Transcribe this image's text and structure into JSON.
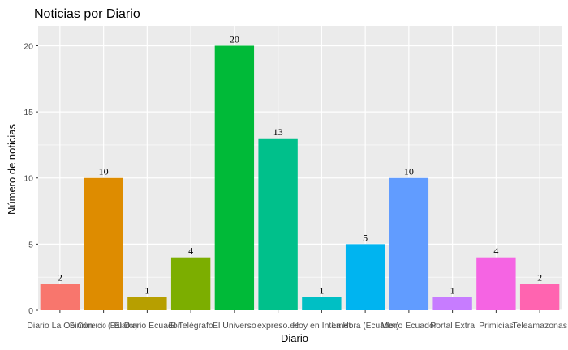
{
  "chart_data": {
    "type": "bar",
    "title": "Noticias por Diario",
    "xlabel": "Diario",
    "ylabel": "Número de noticias",
    "ylim": [
      0,
      21.5
    ],
    "yticks": [
      0,
      5,
      10,
      15,
      20
    ],
    "grid": true,
    "legend": "none",
    "categories": [
      "Diario La Opinión",
      "El Comercio (Ecuador)",
      "El Diario Ecuador",
      "El Telégrafo",
      "El Universo",
      "expreso.ec",
      "Hoy en Internet",
      "La Hora (Ecuador)",
      "Metro Ecuador",
      "Portal Extra",
      "Primicias",
      "Teleamazonas"
    ],
    "values": [
      2,
      10,
      1,
      4,
      20,
      13,
      1,
      5,
      10,
      1,
      4,
      2
    ],
    "colors": [
      "#F8766D",
      "#DE8C00",
      "#B79F00",
      "#7CAE00",
      "#00BA38",
      "#00C08B",
      "#00BFC4",
      "#00B4F0",
      "#619CFF",
      "#C77CFF",
      "#F564E3",
      "#FF64B0"
    ],
    "panel_background": "#EBEBEB",
    "grid_color": "#FFFFFF"
  }
}
